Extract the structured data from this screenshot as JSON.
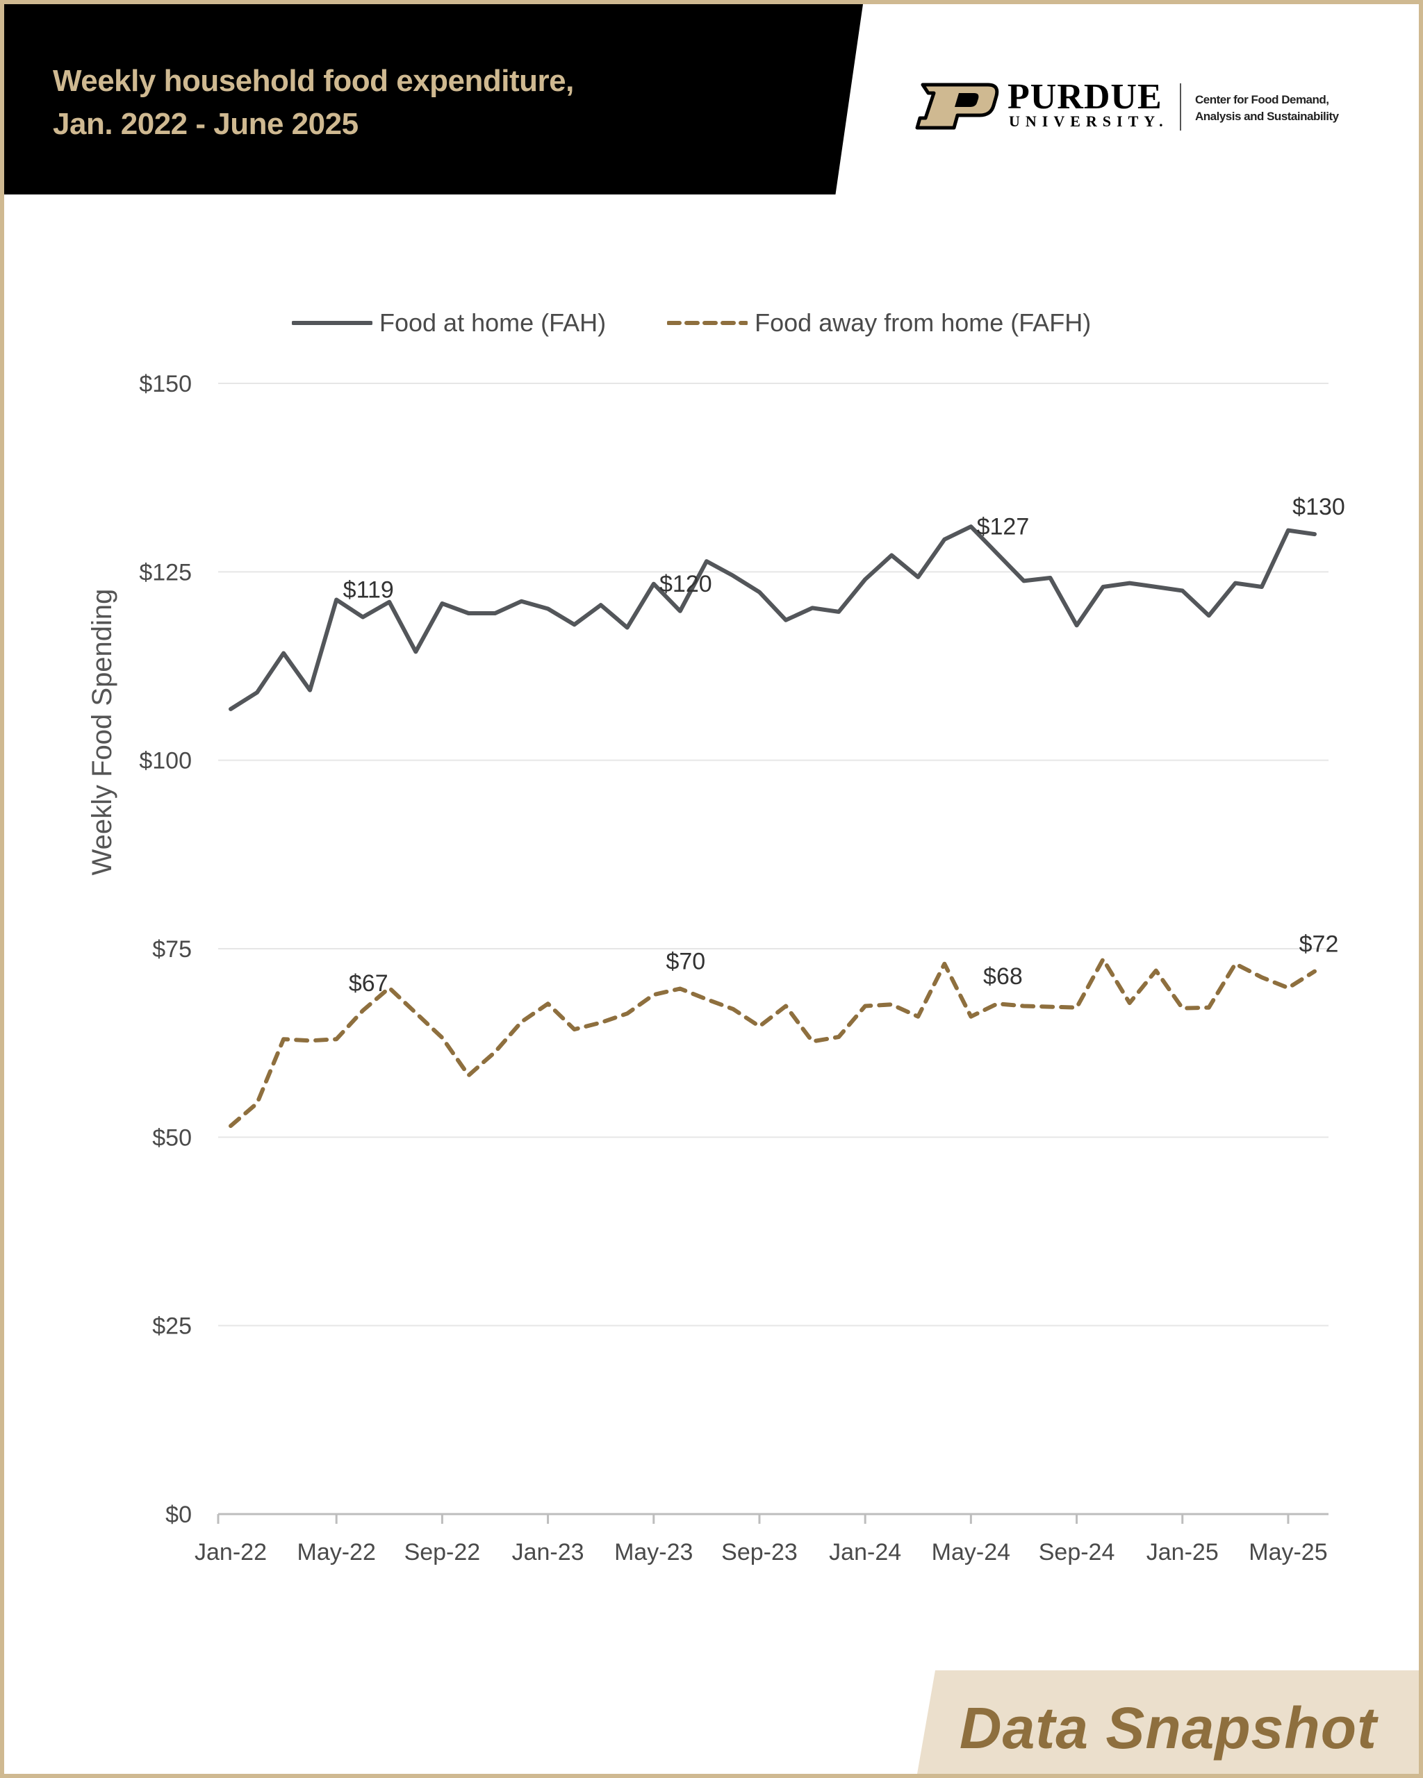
{
  "header": {
    "title_line1": "Weekly household food expenditure,",
    "title_line2": "Jan. 2022 - June 2025"
  },
  "logo": {
    "wordmark": "PURDUE",
    "subword": "UNIVERSITY.",
    "center_line1": "Center for Food Demand,",
    "center_line2": "Analysis and Sustainability"
  },
  "footer": {
    "badge_text": "Data Snapshot"
  },
  "colors": {
    "fah": "#53565a",
    "fafh": "#8e6f3e",
    "gold": "#cfb991",
    "grid": "#e6e6e6",
    "axis_text": "#4a4a4a"
  },
  "chart_data": {
    "type": "line",
    "title": "Weekly household food expenditure, Jan. 2022 - June 2025",
    "ylabel": "Weekly Food Spending",
    "xlabel": "",
    "ylim": [
      0,
      150
    ],
    "yticks": [
      0,
      25,
      50,
      75,
      100,
      125,
      150
    ],
    "ytick_labels": [
      "$0",
      "$25",
      "$50",
      "$75",
      "$100",
      "$125",
      "$150"
    ],
    "xtick_labels": [
      "Jan-22",
      "May-22",
      "Sep-22",
      "Jan-23",
      "May-23",
      "Sep-23",
      "Jan-24",
      "May-24",
      "Sep-24",
      "Jan-25",
      "May-25"
    ],
    "x": [
      "Jan-22",
      "Feb-22",
      "Mar-22",
      "Apr-22",
      "May-22",
      "Jun-22",
      "Jul-22",
      "Aug-22",
      "Sep-22",
      "Oct-22",
      "Nov-22",
      "Dec-22",
      "Jan-23",
      "Feb-23",
      "Mar-23",
      "Apr-23",
      "May-23",
      "Jun-23",
      "Jul-23",
      "Aug-23",
      "Sep-23",
      "Oct-23",
      "Nov-23",
      "Dec-23",
      "Jan-24",
      "Feb-24",
      "Mar-24",
      "Apr-24",
      "May-24",
      "Jun-24",
      "Jul-24",
      "Aug-24",
      "Sep-24",
      "Oct-24",
      "Nov-24",
      "Dec-24",
      "Jan-25",
      "Feb-25",
      "Mar-25",
      "Apr-25",
      "May-25",
      "Jun-25"
    ],
    "legend_position": "top",
    "grid": true,
    "series": [
      {
        "name": "Food at home (FAH)",
        "style": "solid",
        "values": [
          106.8,
          109.0,
          114.2,
          109.3,
          121.3,
          119.0,
          121.0,
          114.4,
          120.8,
          119.5,
          119.5,
          121.1,
          120.1,
          118.0,
          120.6,
          117.6,
          123.4,
          119.8,
          126.4,
          124.5,
          122.3,
          118.6,
          120.2,
          119.7,
          124.0,
          127.2,
          124.3,
          129.3,
          131.0,
          127.4,
          123.8,
          124.2,
          117.9,
          123.0,
          123.5,
          123.0,
          122.5,
          119.2,
          123.5,
          123.0,
          130.5,
          130.0
        ],
        "labels": [
          {
            "index": 5,
            "text": "$119"
          },
          {
            "index": 17,
            "text": "$120"
          },
          {
            "index": 29,
            "text": "$127"
          },
          {
            "index": 41,
            "text": "$130"
          }
        ]
      },
      {
        "name": "Food away from home (FAFH)",
        "style": "dashed",
        "values": [
          51.5,
          54.5,
          63.0,
          62.8,
          63.0,
          66.8,
          69.8,
          66.5,
          63.2,
          58.2,
          61.3,
          65.3,
          67.7,
          64.3,
          65.2,
          66.4,
          68.9,
          69.7,
          68.3,
          67.0,
          64.7,
          67.4,
          62.7,
          63.3,
          67.4,
          67.6,
          66.0,
          73.0,
          66.0,
          67.7,
          67.4,
          67.3,
          67.2,
          73.6,
          67.8,
          72.1,
          67.1,
          67.2,
          73.0,
          71.2,
          69.8,
          72.0
        ],
        "labels": [
          {
            "index": 5,
            "text": "$67"
          },
          {
            "index": 17,
            "text": "$70"
          },
          {
            "index": 29,
            "text": "$68"
          },
          {
            "index": 41,
            "text": "$72"
          }
        ]
      }
    ]
  }
}
